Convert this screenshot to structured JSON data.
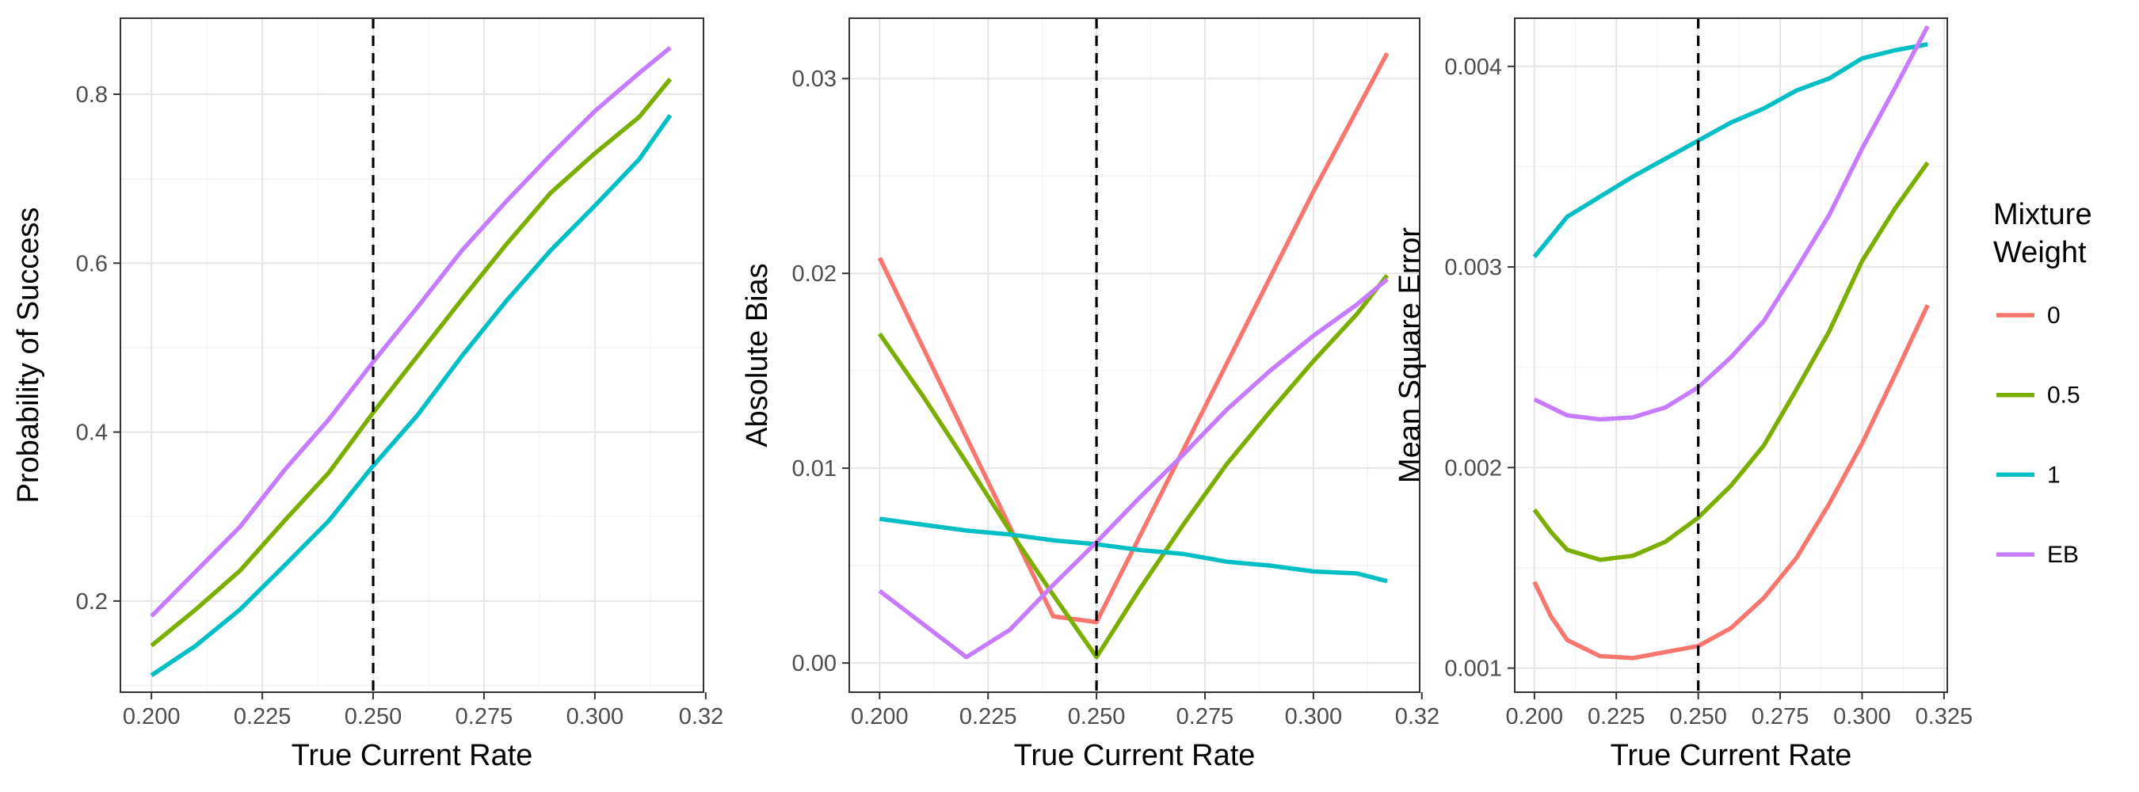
{
  "legend": {
    "title_lines": [
      "Mixture",
      "Weight"
    ],
    "items": [
      {
        "label": "0",
        "color": "#F8766D"
      },
      {
        "label": "0.5",
        "color": "#7CAE00"
      },
      {
        "label": "1",
        "color": "#00BFC4"
      },
      {
        "label": "EB",
        "color": "#C77CFF"
      }
    ]
  },
  "chart_data": [
    {
      "type": "line",
      "xlabel": "True Current Rate",
      "ylabel": "Probability of Success",
      "xlim": [
        0.193,
        0.3245
      ],
      "ylim": [
        0.092,
        0.89
      ],
      "x_ticks": [
        0.2,
        0.225,
        0.25,
        0.275,
        0.3
      ],
      "x_tick_labels": [
        "0.200",
        "0.225",
        "0.250",
        "0.275",
        "0.300"
      ],
      "x_tick_partial_label": "0.32",
      "y_ticks": [
        0.2,
        0.4,
        0.6,
        0.8
      ],
      "y_tick_labels": [
        "0.2",
        "0.4",
        "0.6",
        "0.8"
      ],
      "reference_x": 0.25,
      "x": [
        0.2,
        0.21,
        0.22,
        0.23,
        0.24,
        0.25,
        0.26,
        0.27,
        0.28,
        0.29,
        0.3,
        0.31,
        0.317
      ],
      "series": [
        {
          "name": "0.5",
          "color": "#7CAE00",
          "values": [
            0.147,
            0.19,
            0.236,
            0.295,
            0.352,
            0.423,
            0.49,
            0.557,
            0.622,
            0.683,
            0.73,
            0.773,
            0.818
          ]
        },
        {
          "name": "1",
          "color": "#00BFC4",
          "values": [
            0.112,
            0.147,
            0.19,
            0.242,
            0.295,
            0.36,
            0.42,
            0.49,
            0.555,
            0.615,
            0.668,
            0.723,
            0.775
          ]
        },
        {
          "name": "EB",
          "color": "#C77CFF",
          "values": [
            0.182,
            0.235,
            0.288,
            0.355,
            0.415,
            0.483,
            0.548,
            0.615,
            0.673,
            0.728,
            0.78,
            0.825,
            0.855
          ]
        }
      ]
    },
    {
      "type": "line",
      "xlabel": "True Current Rate",
      "ylabel": "Absolute Bias",
      "xlim": [
        0.193,
        0.3245
      ],
      "ylim": [
        -0.0015,
        0.0331
      ],
      "x_ticks": [
        0.2,
        0.225,
        0.25,
        0.275,
        0.3
      ],
      "x_tick_labels": [
        "0.200",
        "0.225",
        "0.250",
        "0.275",
        "0.300"
      ],
      "x_tick_partial_label": "0.32",
      "y_ticks": [
        0.0,
        0.01,
        0.02,
        0.03
      ],
      "y_tick_labels": [
        "0.00",
        "0.01",
        "0.02",
        "0.03"
      ],
      "reference_x": 0.25,
      "series": [
        {
          "name": "0",
          "color": "#F8766D",
          "x": [
            0.2,
            0.24,
            0.25,
            0.3,
            0.317
          ],
          "values": [
            0.0208,
            0.0024,
            0.0021,
            0.0242,
            0.0313
          ]
        },
        {
          "name": "0.5",
          "color": "#7CAE00",
          "x": [
            0.2,
            0.21,
            0.22,
            0.23,
            0.24,
            0.25,
            0.26,
            0.27,
            0.28,
            0.29,
            0.3,
            0.31,
            0.317
          ],
          "values": [
            0.0169,
            0.0137,
            0.0103,
            0.0068,
            0.0035,
            0.0003,
            0.0038,
            0.0071,
            0.0102,
            0.0129,
            0.0155,
            0.0179,
            0.0199
          ]
        },
        {
          "name": "1",
          "color": "#00BFC4",
          "x": [
            0.2,
            0.21,
            0.22,
            0.23,
            0.24,
            0.25,
            0.26,
            0.27,
            0.28,
            0.29,
            0.3,
            0.31,
            0.317
          ],
          "values": [
            0.0074,
            0.0071,
            0.0068,
            0.0066,
            0.0063,
            0.0061,
            0.0058,
            0.0056,
            0.0052,
            0.005,
            0.0047,
            0.0046,
            0.0042
          ]
        },
        {
          "name": "EB",
          "color": "#C77CFF",
          "x": [
            0.2,
            0.21,
            0.22,
            0.23,
            0.24,
            0.25,
            0.26,
            0.27,
            0.28,
            0.29,
            0.3,
            0.31,
            0.317
          ],
          "values": [
            0.0037,
            0.002,
            0.0003,
            0.0017,
            0.004,
            0.0062,
            0.0085,
            0.0107,
            0.013,
            0.015,
            0.0168,
            0.0184,
            0.0197
          ]
        }
      ]
    },
    {
      "type": "line",
      "xlabel": "True Current Rate",
      "ylabel": "Mean Square Error",
      "xlim": [
        0.194,
        0.326
      ],
      "ylim": [
        0.00088,
        0.00424
      ],
      "x_ticks": [
        0.2,
        0.225,
        0.25,
        0.275,
        0.3,
        0.325
      ],
      "x_tick_labels": [
        "0.200",
        "0.225",
        "0.250",
        "0.275",
        "0.300",
        "0.325"
      ],
      "y_ticks": [
        0.001,
        0.002,
        0.003,
        0.004
      ],
      "y_tick_labels": [
        "0.001",
        "0.002",
        "0.003",
        "0.004"
      ],
      "reference_x": 0.25,
      "x": [
        0.2,
        0.205,
        0.21,
        0.22,
        0.23,
        0.24,
        0.25,
        0.26,
        0.27,
        0.28,
        0.29,
        0.3,
        0.31,
        0.32
      ],
      "series": [
        {
          "name": "0",
          "color": "#F8766D",
          "values": [
            0.00143,
            0.00126,
            0.00114,
            0.00106,
            0.00105,
            0.00108,
            0.00111,
            0.0012,
            0.00135,
            0.00155,
            0.00182,
            0.00212,
            0.00246,
            0.00281
          ]
        },
        {
          "name": "0.5",
          "color": "#7CAE00",
          "values": [
            0.00179,
            0.00168,
            0.00159,
            0.00154,
            0.00156,
            0.00163,
            0.00175,
            0.00191,
            0.00211,
            0.00239,
            0.00268,
            0.00303,
            0.00329,
            0.00352
          ]
        },
        {
          "name": "1",
          "color": "#00BFC4",
          "values": [
            0.00305,
            0.00315,
            0.00325,
            0.00335,
            0.00345,
            0.00354,
            0.00363,
            0.00372,
            0.00379,
            0.00388,
            0.00394,
            0.00404,
            0.00408,
            0.00411
          ]
        },
        {
          "name": "EB",
          "color": "#C77CFF",
          "values": [
            0.00234,
            0.0023,
            0.00226,
            0.00224,
            0.00225,
            0.0023,
            0.0024,
            0.00255,
            0.00273,
            0.00299,
            0.00326,
            0.00359,
            0.00389,
            0.0042
          ]
        }
      ]
    }
  ]
}
